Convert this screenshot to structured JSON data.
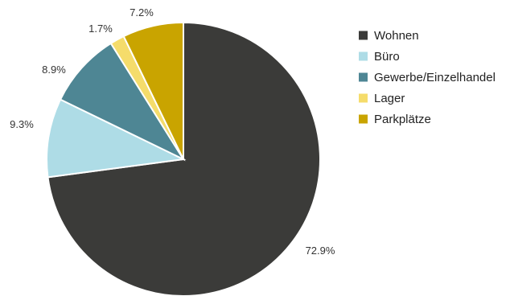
{
  "chart_data": {
    "type": "pie",
    "categories": [
      "Wohnen",
      "Büro",
      "Gewerbe/Einzelhandel",
      "Lager",
      "Parkplätze"
    ],
    "values": [
      72.9,
      9.3,
      8.9,
      1.7,
      7.2
    ],
    "labels": [
      "72.9%",
      "9.3%",
      "8.9%",
      "1.7%",
      "7.2%"
    ],
    "colors": [
      "#3b3b39",
      "#aedce6",
      "#4e8694",
      "#f5dc6b",
      "#c9a400"
    ],
    "start": "12 o'clock",
    "direction": "clockwise",
    "legend": "right"
  }
}
